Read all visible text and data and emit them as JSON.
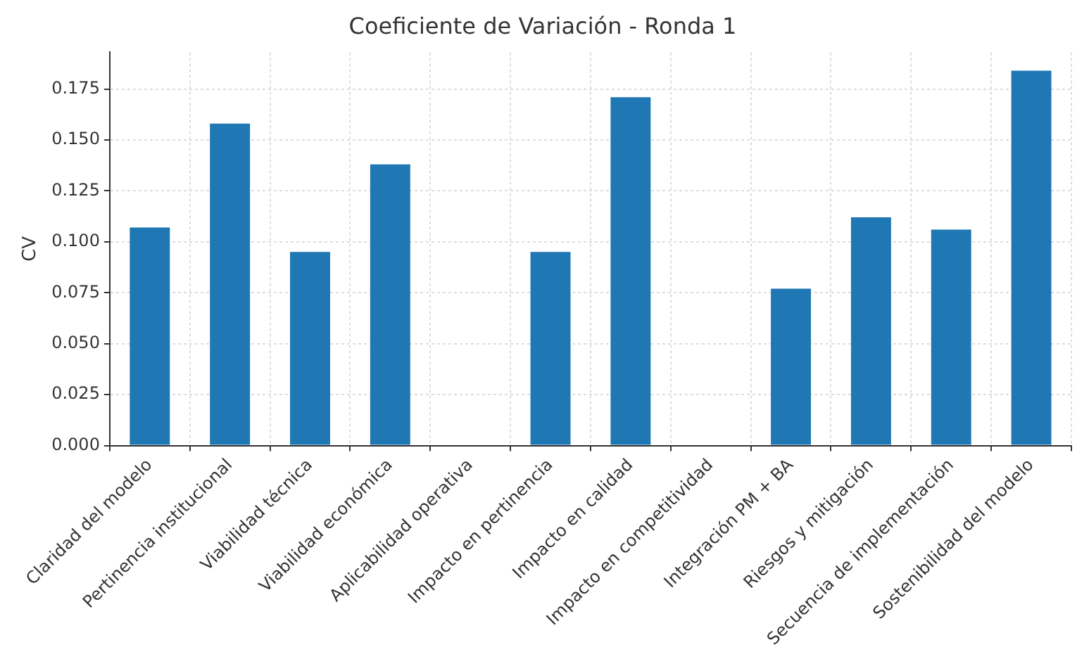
{
  "chart_data": {
    "type": "bar",
    "title": "Coeficiente de Variación - Ronda 1",
    "ylabel": "CV",
    "categories": [
      "Claridad del modelo",
      "Pertinencia institucional",
      "Viabilidad técnica",
      "Viabilidad económica",
      "Aplicabilidad operativa",
      "Impacto en pertinencia",
      "Impacto en calidad",
      "Impacto en competitividad",
      "Integración PM + BA",
      "Riesgos y mitigación",
      "Secuencia de implementación",
      "Sostenibilidad del modelo"
    ],
    "values": [
      0.107,
      0.158,
      0.095,
      0.138,
      0,
      0.095,
      0.171,
      0,
      0.077,
      0.112,
      0.106,
      0.184
    ],
    "color": "#1f77b4",
    "ylim": [
      0,
      0.193
    ],
    "yticks": [
      {
        "value": 0,
        "label": "0.000"
      },
      {
        "value": 0.025,
        "label": "0.025"
      },
      {
        "value": 0.05,
        "label": "0.050"
      },
      {
        "value": 0.075,
        "label": "0.075"
      },
      {
        "value": 0.1,
        "label": "0.100"
      },
      {
        "value": 0.125,
        "label": "0.125"
      },
      {
        "value": 0.15,
        "label": "0.150"
      },
      {
        "value": 0.175,
        "label": "0.175"
      }
    ],
    "grid": true
  }
}
